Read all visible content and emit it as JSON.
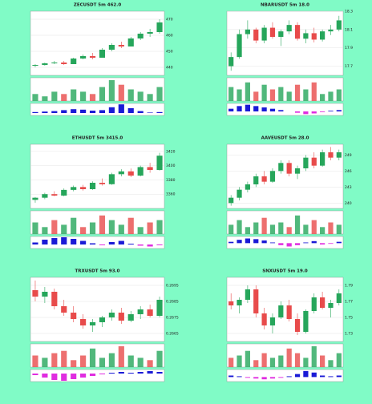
{
  "chart_data": [
    {
      "type": "candlestick",
      "title": "ZECUSDT 5m 462.0",
      "ylim": [
        435,
        475
      ],
      "yticks": [
        440,
        450,
        460,
        470
      ],
      "candles": [
        [
          441,
          442,
          440,
          441.5
        ],
        [
          441.5,
          443,
          441,
          442.5
        ],
        [
          442.5,
          444,
          442,
          443
        ],
        [
          443,
          444,
          441.5,
          442
        ],
        [
          442,
          446,
          442,
          445.5
        ],
        [
          445.5,
          448,
          445,
          447
        ],
        [
          447,
          449,
          445,
          446
        ],
        [
          446,
          452,
          446,
          451
        ],
        [
          451,
          455,
          450,
          454
        ],
        [
          454,
          456,
          452,
          453
        ],
        [
          453,
          459,
          453,
          458
        ],
        [
          458,
          462,
          457,
          461
        ],
        [
          461,
          464,
          459,
          462
        ],
        [
          462,
          470,
          461,
          468
        ]
      ],
      "volume": [
        3,
        2,
        4,
        3,
        5,
        4,
        3,
        6,
        9,
        7,
        5,
        4,
        3,
        6
      ],
      "vlim": [
        0,
        10
      ],
      "macd": [
        0.2,
        0.3,
        0.4,
        0.6,
        0.8,
        0.7,
        0.5,
        0.6,
        1.2,
        1.8,
        1.0,
        0.4,
        0.1,
        0.2
      ],
      "mlim": [
        -0.5,
        2
      ]
    },
    {
      "type": "candlestick",
      "title": "NBARUSDT 5m 18.0",
      "ylim": [
        17.6,
        18.3
      ],
      "yticks": [
        17.7,
        17.9,
        18.1,
        18.3
      ],
      "candles": [
        [
          17.7,
          17.85,
          17.65,
          17.8
        ],
        [
          17.8,
          18.1,
          17.78,
          18.05
        ],
        [
          18.05,
          18.2,
          18.0,
          18.1
        ],
        [
          18.1,
          18.12,
          17.95,
          17.98
        ],
        [
          17.98,
          18.15,
          17.95,
          18.12
        ],
        [
          18.12,
          18.18,
          18.0,
          18.02
        ],
        [
          18.02,
          18.1,
          17.92,
          18.08
        ],
        [
          18.08,
          18.2,
          18.05,
          18.15
        ],
        [
          18.15,
          18.18,
          17.98,
          18.0
        ],
        [
          18.0,
          18.1,
          17.95,
          18.06
        ],
        [
          18.06,
          18.12,
          17.96,
          17.99
        ],
        [
          17.99,
          18.1,
          17.97,
          18.08
        ],
        [
          18.08,
          18.15,
          18.04,
          18.1
        ],
        [
          18.1,
          18.25,
          18.08,
          18.2
        ]
      ],
      "volume": [
        6,
        5,
        8,
        4,
        7,
        5,
        6,
        4,
        7,
        5,
        8,
        3,
        4,
        5
      ],
      "vlim": [
        0,
        10
      ],
      "macd": [
        0.02,
        0.04,
        0.05,
        0.04,
        0.03,
        0.02,
        0.01,
        0.0,
        -0.01,
        -0.02,
        -0.015,
        -0.005,
        0.005,
        0.01
      ],
      "mlim": [
        -0.03,
        0.06
      ]
    },
    {
      "type": "candlestick",
      "title": "ETHUSDT 5m 3415.0",
      "ylim": [
        3340,
        3430
      ],
      "yticks": [
        3360,
        3380,
        3400,
        3420
      ],
      "candles": [
        [
          3352,
          3356,
          3348,
          3355
        ],
        [
          3355,
          3362,
          3353,
          3360
        ],
        [
          3360,
          3364,
          3357,
          3358
        ],
        [
          3358,
          3368,
          3357,
          3366
        ],
        [
          3366,
          3372,
          3364,
          3370
        ],
        [
          3370,
          3373,
          3365,
          3367
        ],
        [
          3367,
          3378,
          3366,
          3376
        ],
        [
          3376,
          3382,
          3372,
          3374
        ],
        [
          3374,
          3390,
          3373,
          3388
        ],
        [
          3388,
          3395,
          3385,
          3392
        ],
        [
          3392,
          3396,
          3384,
          3386
        ],
        [
          3386,
          3400,
          3385,
          3398
        ],
        [
          3398,
          3404,
          3390,
          3394
        ],
        [
          3394,
          3418,
          3393,
          3414
        ]
      ],
      "volume": [
        5,
        3,
        6,
        4,
        7,
        3,
        5,
        8,
        6,
        4,
        7,
        3,
        5,
        6
      ],
      "vlim": [
        0,
        10
      ],
      "macd": [
        0.5,
        1.2,
        1.6,
        1.8,
        1.4,
        0.9,
        0.3,
        -0.2,
        0.6,
        0.9,
        0.2,
        -0.3,
        -0.5,
        -0.2
      ],
      "mlim": [
        -1,
        2
      ]
    },
    {
      "type": "candlestick",
      "title": "AAVEUSDT 5m 28.0",
      "ylim": [
        239,
        251
      ],
      "yticks": [
        240,
        243,
        246,
        249
      ],
      "candles": [
        [
          240,
          241.5,
          239.5,
          241
        ],
        [
          241,
          243,
          240.5,
          242.5
        ],
        [
          242.5,
          244,
          242,
          243.5
        ],
        [
          243.5,
          245.5,
          243,
          245
        ],
        [
          245,
          246,
          243.5,
          244
        ],
        [
          244,
          246.5,
          243.8,
          246
        ],
        [
          246,
          248,
          245.5,
          247.5
        ],
        [
          247.5,
          248,
          245,
          245.5
        ],
        [
          245.5,
          247,
          244.5,
          246.5
        ],
        [
          246.5,
          249,
          246,
          248.5
        ],
        [
          248.5,
          249.5,
          246.5,
          247
        ],
        [
          247,
          250,
          246.8,
          249.5
        ],
        [
          249.5,
          250.5,
          248,
          248.5
        ],
        [
          248.5,
          250,
          248,
          249.5
        ]
      ],
      "volume": [
        4,
        6,
        3,
        5,
        7,
        4,
        5,
        3,
        8,
        4,
        6,
        3,
        5,
        4
      ],
      "vlim": [
        0,
        10
      ],
      "macd": [
        0.2,
        0.5,
        0.7,
        0.6,
        0.4,
        0.1,
        -0.3,
        -0.5,
        -0.3,
        0.1,
        0.3,
        -0.2,
        -0.1,
        0.2
      ],
      "mlim": [
        -0.8,
        1
      ]
    },
    {
      "type": "candlestick",
      "title": "TRXUSDT 5m 93.0",
      "ylim": [
        0.266,
        0.27
      ],
      "yticks": [
        0.2665,
        0.2675,
        0.2685,
        0.2695
      ],
      "candles": [
        [
          0.2692,
          0.2698,
          0.2685,
          0.2688
        ],
        [
          0.2688,
          0.2694,
          0.2684,
          0.2691
        ],
        [
          0.2691,
          0.2693,
          0.268,
          0.2682
        ],
        [
          0.2682,
          0.2686,
          0.2676,
          0.2678
        ],
        [
          0.2678,
          0.2682,
          0.2672,
          0.2674
        ],
        [
          0.2674,
          0.2677,
          0.2668,
          0.267
        ],
        [
          0.267,
          0.2674,
          0.2666,
          0.2672
        ],
        [
          0.2672,
          0.2676,
          0.2669,
          0.2675
        ],
        [
          0.2675,
          0.268,
          0.2673,
          0.2678
        ],
        [
          0.2678,
          0.2681,
          0.2671,
          0.2673
        ],
        [
          0.2673,
          0.2679,
          0.2672,
          0.2677
        ],
        [
          0.2677,
          0.2682,
          0.2674,
          0.268
        ],
        [
          0.268,
          0.2683,
          0.2675,
          0.2676
        ],
        [
          0.2676,
          0.2688,
          0.2675,
          0.2686
        ]
      ],
      "volume": [
        5,
        4,
        6,
        7,
        3,
        5,
        8,
        4,
        6,
        9,
        5,
        4,
        3,
        7
      ],
      "vlim": [
        0,
        10
      ],
      "macd": [
        -0.2,
        -0.5,
        -0.8,
        -0.9,
        -0.7,
        -0.5,
        -0.3,
        -0.1,
        0.1,
        0.2,
        0.1,
        0.2,
        0.3,
        0.2
      ],
      "mlim": [
        -1,
        0.5
      ]
    },
    {
      "type": "candlestick",
      "title": "SNXUSDT 5m 19.0",
      "ylim": [
        1.72,
        1.8
      ],
      "yticks": [
        1.73,
        1.75,
        1.77,
        1.79
      ],
      "candles": [
        [
          1.77,
          1.78,
          1.76,
          1.765
        ],
        [
          1.765,
          1.775,
          1.755,
          1.772
        ],
        [
          1.772,
          1.79,
          1.768,
          1.785
        ],
        [
          1.785,
          1.79,
          1.75,
          1.755
        ],
        [
          1.755,
          1.762,
          1.735,
          1.74
        ],
        [
          1.74,
          1.755,
          1.73,
          1.75
        ],
        [
          1.75,
          1.77,
          1.748,
          1.765
        ],
        [
          1.765,
          1.772,
          1.745,
          1.748
        ],
        [
          1.748,
          1.755,
          1.728,
          1.732
        ],
        [
          1.732,
          1.76,
          1.73,
          1.758
        ],
        [
          1.758,
          1.78,
          1.755,
          1.775
        ],
        [
          1.775,
          1.782,
          1.76,
          1.762
        ],
        [
          1.762,
          1.772,
          1.75,
          1.768
        ],
        [
          1.768,
          1.785,
          1.765,
          1.78
        ]
      ],
      "volume": [
        4,
        5,
        7,
        3,
        6,
        4,
        5,
        8,
        6,
        4,
        9,
        5,
        3,
        6
      ],
      "vlim": [
        0,
        10
      ],
      "macd": [
        0.1,
        0.05,
        -0.05,
        -0.1,
        -0.15,
        -0.1,
        -0.05,
        0.05,
        0.2,
        0.4,
        0.3,
        0.1,
        0.05,
        0.1
      ],
      "mlim": [
        -0.3,
        0.5
      ]
    }
  ]
}
